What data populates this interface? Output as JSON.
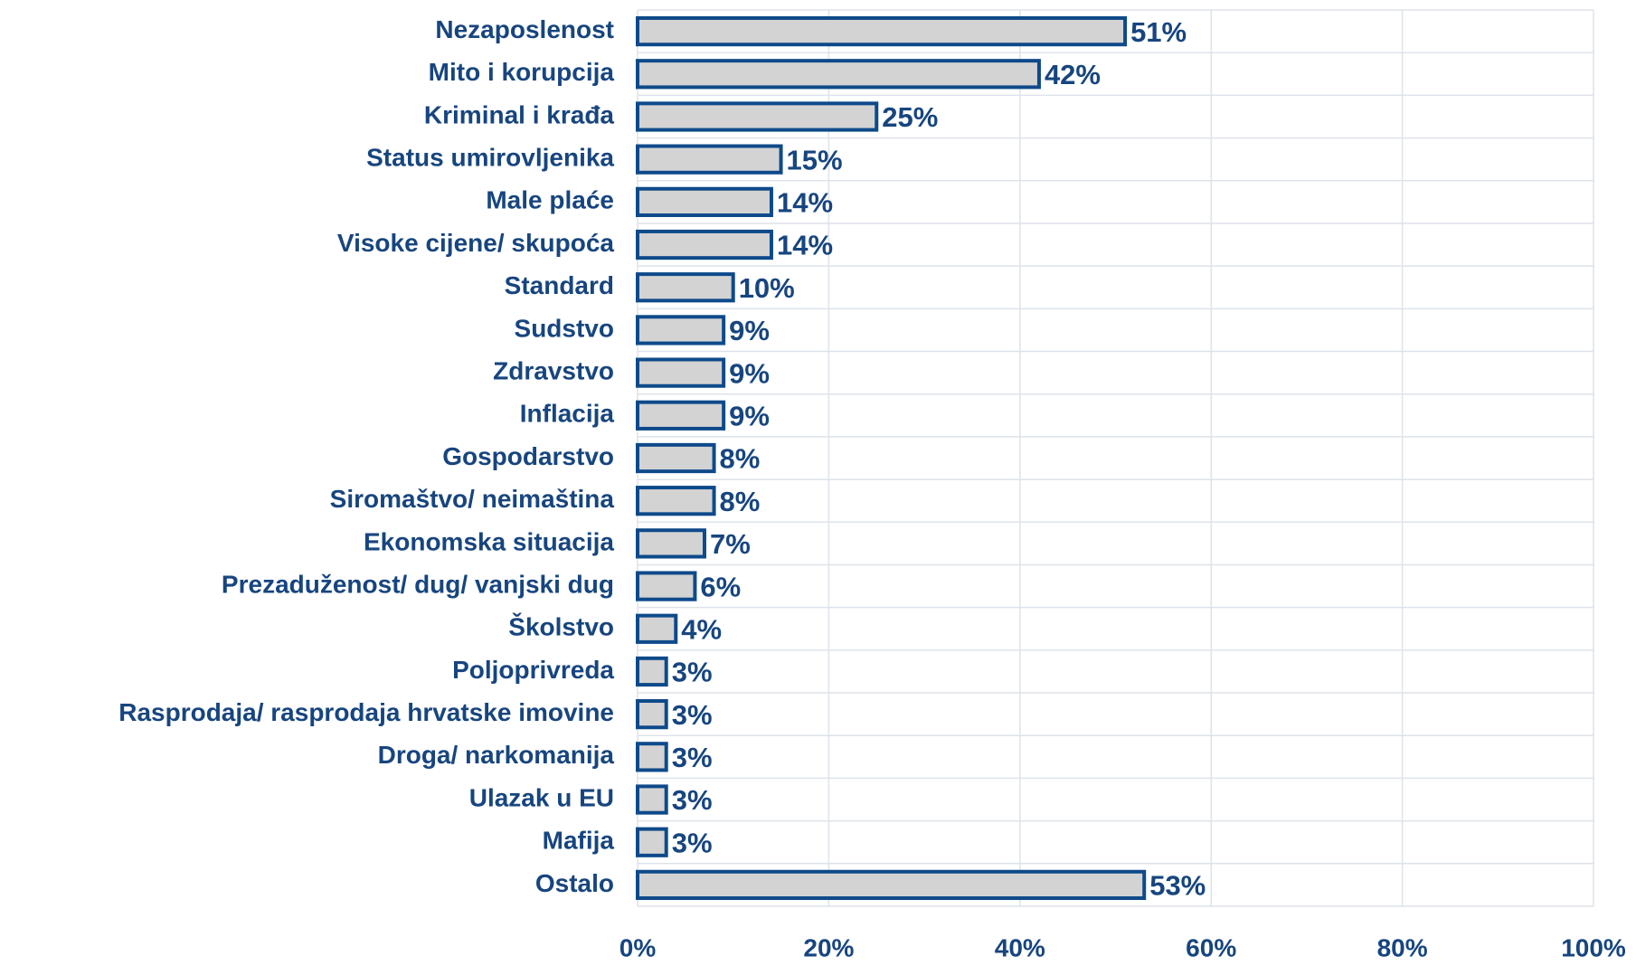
{
  "chart_data": {
    "type": "bar",
    "orientation": "horizontal",
    "categories": [
      "Nezaposlenost",
      "Mito i korupcija",
      "Kriminal i krađa",
      "Status umirovljenika",
      "Male plaće",
      "Visoke cijene/ skupoća",
      "Standard",
      "Sudstvo",
      "Zdravstvo",
      "Inflacija",
      "Gospodarstvo",
      "Siromaštvo/ neimaština",
      "Ekonomska situacija",
      "Prezaduženost/ dug/ vanjski dug",
      "Školstvo",
      "Poljoprivreda",
      "Rasprodaja/ rasprodaja hrvatske imovine",
      "Droga/ narkomanija",
      "Ulazak u EU",
      "Mafija",
      "Ostalo"
    ],
    "values": [
      51,
      42,
      25,
      15,
      14,
      14,
      10,
      9,
      9,
      9,
      8,
      8,
      7,
      6,
      4,
      3,
      3,
      3,
      3,
      3,
      53
    ],
    "value_labels": [
      "51%",
      "42%",
      "25%",
      "15%",
      "14%",
      "14%",
      "10%",
      "9%",
      "9%",
      "9%",
      "8%",
      "8%",
      "7%",
      "6%",
      "4%",
      "3%",
      "3%",
      "3%",
      "3%",
      "3%",
      "53%"
    ],
    "color": "#d3d3d3",
    "edge_color": "#0e4a8a",
    "xlim": [
      0,
      100
    ],
    "xticks": [
      {
        "value": 0,
        "label": "0%"
      },
      {
        "value": 20,
        "label": "20%"
      },
      {
        "value": 40,
        "label": "40%"
      },
      {
        "value": 60,
        "label": "60%"
      },
      {
        "value": 80,
        "label": "80%"
      },
      {
        "value": 100,
        "label": "100%"
      }
    ],
    "grid": true
  }
}
